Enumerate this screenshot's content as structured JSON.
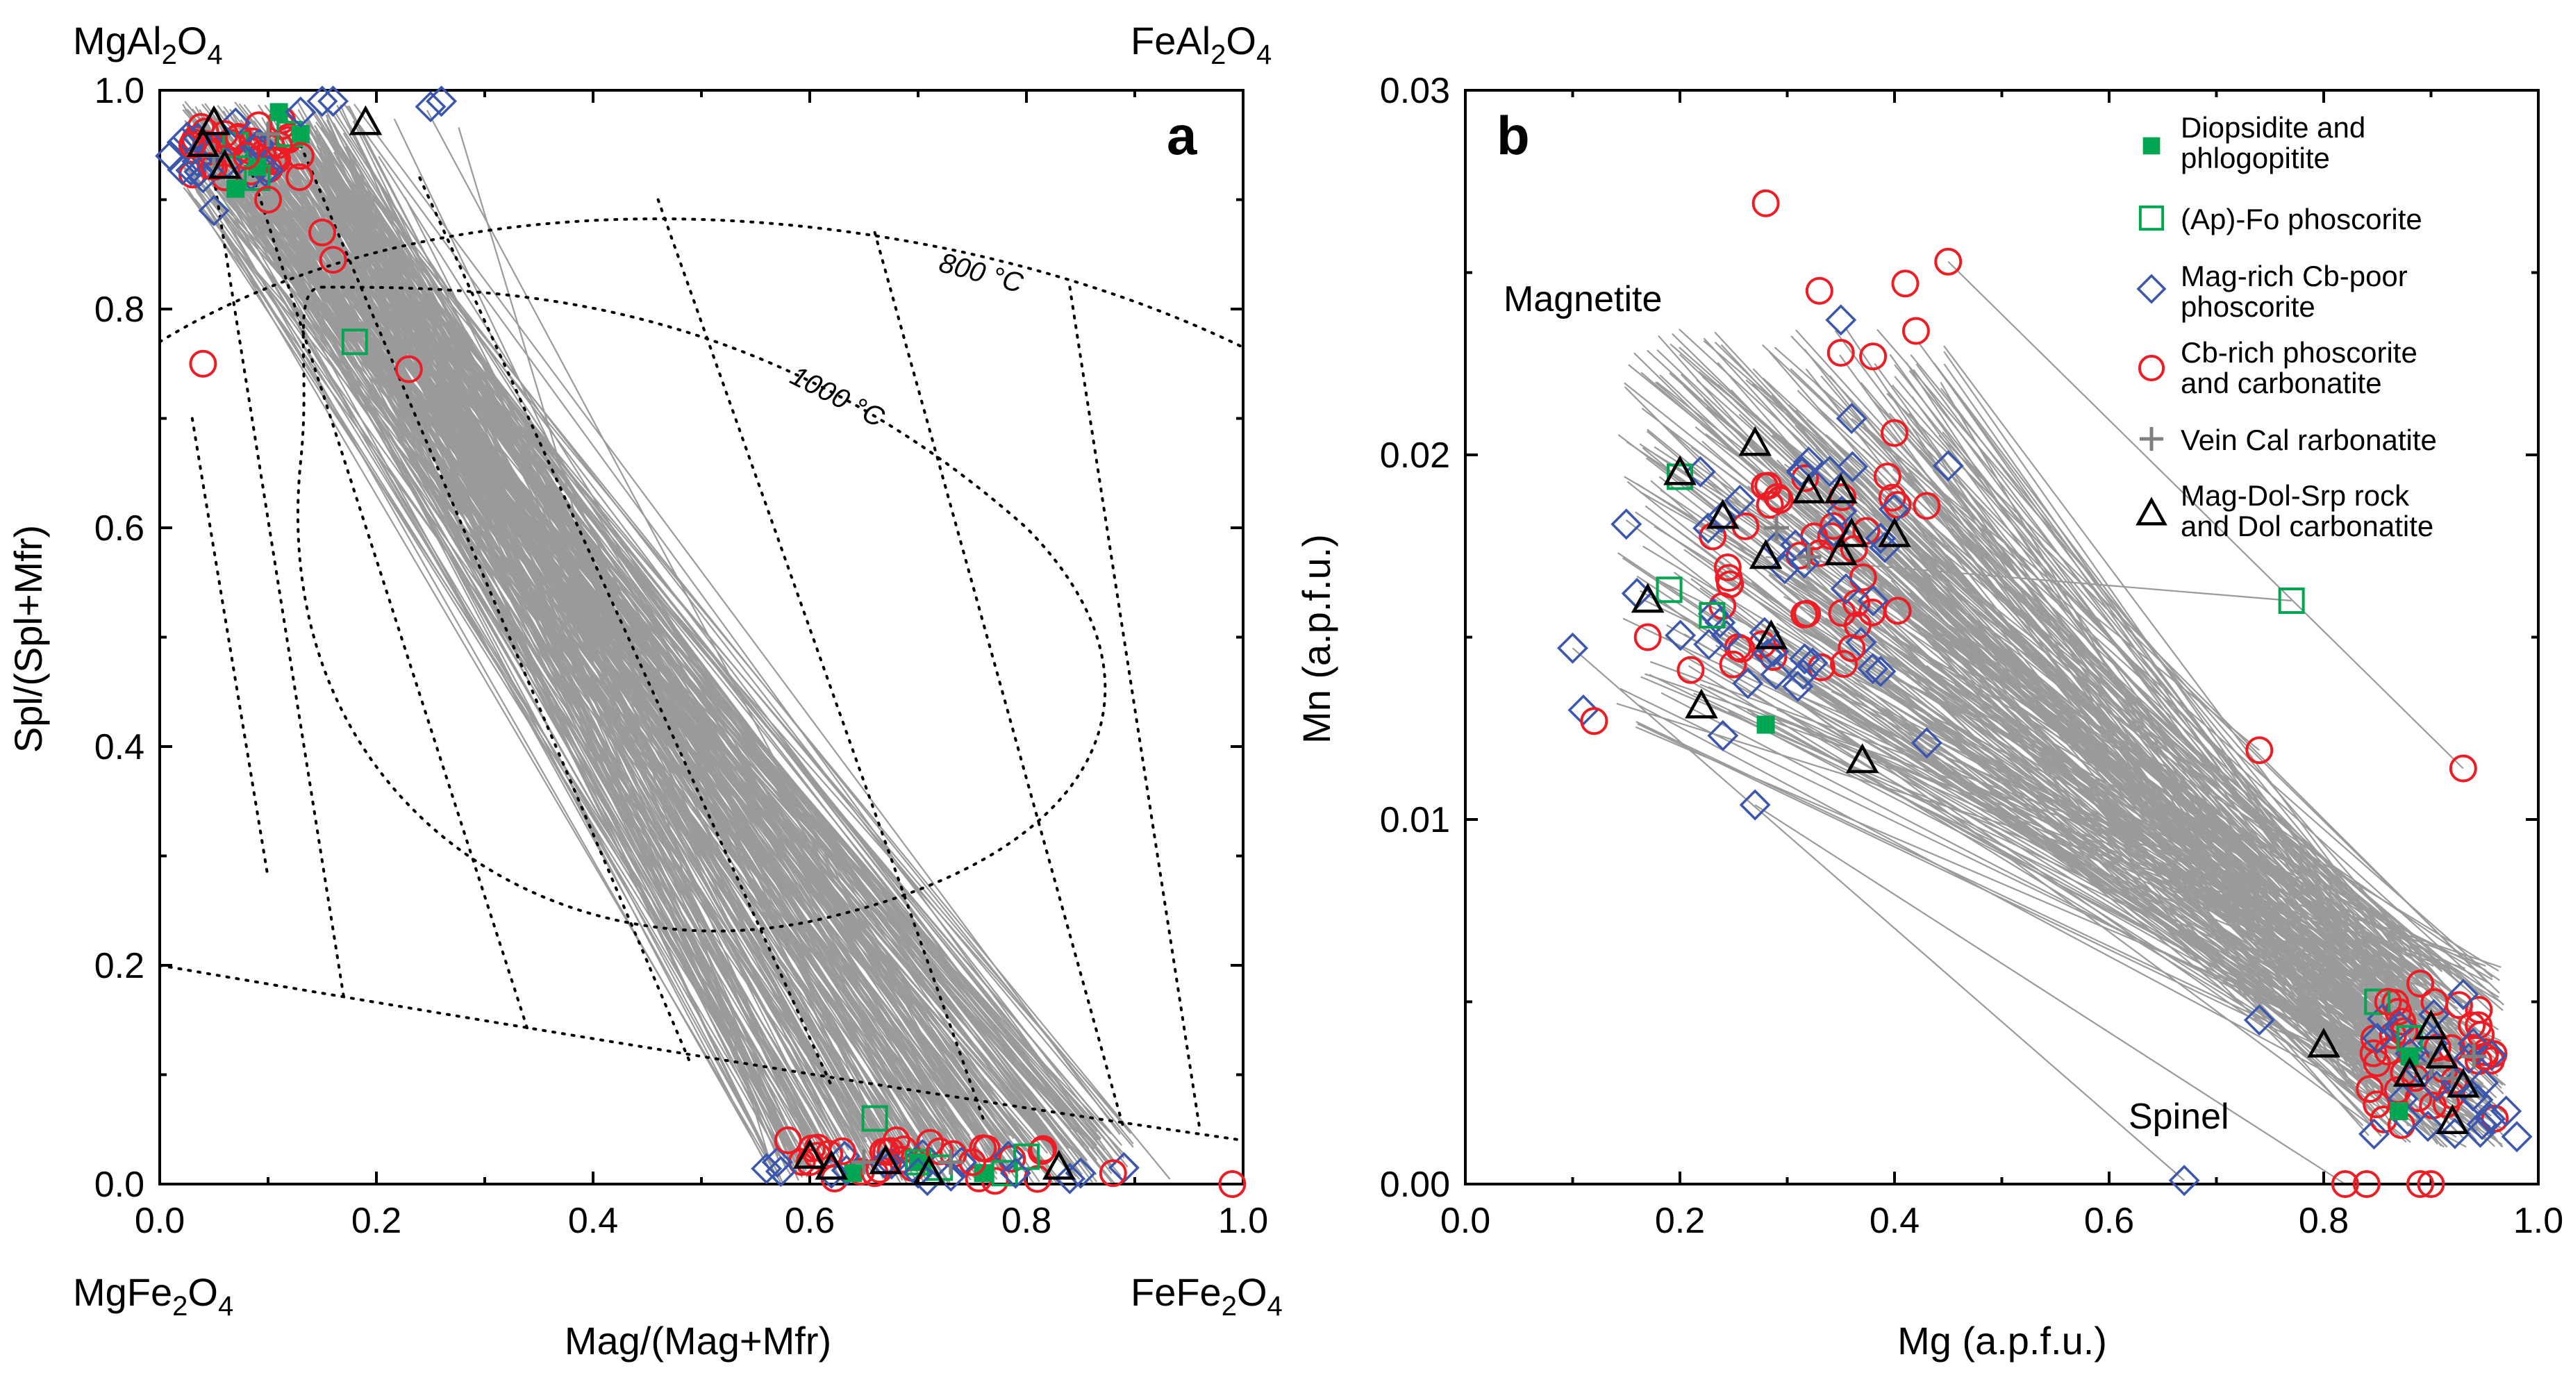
{
  "colors": {
    "diopsidite": "#00a651",
    "ap_fo": "#00a651",
    "mag_rich": "#3a57ad",
    "cb_rich": "#ee1c24",
    "vein_cal": "#808080",
    "mag_dol": "#000000",
    "tie_line": "#9a9a9a"
  },
  "legend": {
    "diopsidite": [
      "Diopsidite and",
      "phlogopitite"
    ],
    "ap_fo": [
      "(Ap)-Fo phoscorite"
    ],
    "mag_rich": [
      "Mag-rich Cb-poor",
      "phoscorite"
    ],
    "cb_rich": [
      "Cb-rich phoscorite",
      "and carbonatite"
    ],
    "vein_cal": [
      "Vein Cal rarbonatite"
    ],
    "mag_dol": [
      "Mag-Dol-Srp rock",
      "and Dol carbonatite"
    ]
  },
  "chart_data": [
    {
      "type": "scatter",
      "panel": "a",
      "xlabel": "Mag/(Mag+Mfr)",
      "ylabel": "Spl/(Spl+Mfr)",
      "xlim": [
        0,
        1
      ],
      "ylim": [
        0,
        1
      ],
      "xticks": [
        "0.0",
        "0.2",
        "0.4",
        "0.6",
        "0.8",
        "1.0"
      ],
      "yticks": [
        "0.0",
        "0.2",
        "0.4",
        "0.6",
        "0.8",
        "1.0"
      ],
      "corners": {
        "top_left": {
          "base": "MgAl",
          "sub1": "2",
          "mid": "O",
          "sub2": "4"
        },
        "top_right": {
          "base": "FeAl",
          "sub1": "2",
          "mid": "O",
          "sub2": "4"
        },
        "bottom_left": {
          "base": "MgFe",
          "sub1": "2",
          "mid": "O",
          "sub2": "4"
        },
        "bottom_right": {
          "base": "FeFe",
          "sub1": "2",
          "mid": "O",
          "sub2": "4"
        }
      },
      "isotherms": [
        {
          "label": "800 °C",
          "x": 0.73,
          "y": 0.84
        },
        {
          "label": "1000 °C",
          "x": 0.63,
          "y": 0.73
        }
      ],
      "series": [
        {
          "name": "Diopsidite and phlogopitite",
          "key": "diopsidite",
          "marker": "filled-square",
          "points": [
            [
              0.11,
              0.98
            ],
            [
              0.13,
              0.96
            ],
            [
              0.09,
              0.93
            ],
            [
              0.07,
              0.91
            ],
            [
              0.7,
              0.02
            ],
            [
              0.64,
              0.01
            ],
            [
              0.76,
              0.01
            ]
          ]
        },
        {
          "name": "(Ap)-Fo phoscorite",
          "key": "ap_fo",
          "marker": "open-square",
          "points": [
            [
              0.07,
              0.95
            ],
            [
              0.09,
              0.92
            ],
            [
              0.12,
              0.96
            ],
            [
              0.18,
              0.77
            ],
            [
              0.66,
              0.06
            ],
            [
              0.7,
              0.02
            ],
            [
              0.72,
              0.015
            ],
            [
              0.8,
              0.025
            ],
            [
              0.78,
              0.01
            ]
          ]
        },
        {
          "name": "Mag-rich Cb-poor phoscorite",
          "key": "mag_rich",
          "marker": "open-diamond",
          "points": [
            [
              0.01,
              0.94
            ],
            [
              0.04,
              0.92
            ],
            [
              0.05,
              0.89
            ],
            [
              0.07,
              0.97
            ],
            [
              0.09,
              0.95
            ],
            [
              0.13,
              0.98
            ],
            [
              0.15,
              0.99
            ],
            [
              0.16,
              0.99
            ],
            [
              0.25,
              0.985
            ],
            [
              0.26,
              0.99
            ],
            [
              0.57,
              0.02
            ],
            [
              0.62,
              0.01
            ],
            [
              0.7,
              0.01
            ],
            [
              0.74,
              0.02
            ],
            [
              0.79,
              0.01
            ],
            [
              0.84,
              0.005
            ],
            [
              0.85,
              0.01
            ],
            [
              0.89,
              0.015
            ]
          ]
        },
        {
          "name": "Cb-rich phoscorite and carbonatite",
          "key": "cb_rich",
          "marker": "open-circle",
          "points": [
            [
              0.03,
              0.95
            ],
            [
              0.05,
              0.93
            ],
            [
              0.06,
              0.96
            ],
            [
              0.08,
              0.94
            ],
            [
              0.1,
              0.9
            ],
            [
              0.11,
              0.95
            ],
            [
              0.13,
              0.94
            ],
            [
              0.15,
              0.87
            ],
            [
              0.16,
              0.845
            ],
            [
              0.04,
              0.75
            ],
            [
              0.23,
              0.745
            ],
            [
              0.58,
              0.04
            ],
            [
              0.6,
              0.02
            ],
            [
              0.63,
              0.03
            ],
            [
              0.66,
              0.01
            ],
            [
              0.68,
              0.04
            ],
            [
              0.72,
              0.03
            ],
            [
              0.75,
              0.02
            ],
            [
              0.88,
              0.01
            ],
            [
              0.99,
              0.0
            ]
          ]
        },
        {
          "name": "Vein Cal rarbonatite",
          "key": "vein_cal",
          "marker": "plus",
          "points": [
            [
              0.05,
              0.94
            ],
            [
              0.1,
              0.96
            ],
            [
              0.65,
              0.02
            ],
            [
              0.73,
              0.02
            ]
          ]
        },
        {
          "name": "Mag-Dol-Srp rock and Dol carbonatite",
          "key": "mag_dol",
          "marker": "open-triangle",
          "points": [
            [
              0.04,
              0.95
            ],
            [
              0.05,
              0.97
            ],
            [
              0.06,
              0.93
            ],
            [
              0.19,
              0.97
            ],
            [
              0.6,
              0.025
            ],
            [
              0.62,
              0.015
            ],
            [
              0.67,
              0.02
            ],
            [
              0.71,
              0.01
            ],
            [
              0.83,
              0.015
            ]
          ]
        }
      ]
    },
    {
      "type": "scatter",
      "panel": "b",
      "xlabel": "Mg (a.p.f.u.)",
      "ylabel": "Mn (a.p.f.u.)",
      "xlim": [
        0,
        1
      ],
      "ylim": [
        0,
        0.03
      ],
      "xticks": [
        "0.0",
        "0.2",
        "0.4",
        "0.6",
        "0.8",
        "1.0"
      ],
      "yticks": [
        "0.00",
        "0.01",
        "0.02",
        "0.03"
      ],
      "annotations": [
        "Magnetite",
        "Spinel"
      ],
      "series": [
        {
          "name": "Diopsidite and phlogopitite",
          "key": "diopsidite",
          "marker": "filled-square",
          "points": [
            [
              0.28,
              0.0126
            ],
            [
              0.87,
              0.002
            ],
            [
              0.88,
              0.0035
            ]
          ]
        },
        {
          "name": "(Ap)-Fo phoscorite",
          "key": "ap_fo",
          "marker": "open-square",
          "points": [
            [
              0.2,
              0.0194
            ],
            [
              0.19,
              0.0163
            ],
            [
              0.23,
              0.0156
            ],
            [
              0.77,
              0.016
            ],
            [
              0.85,
              0.005
            ],
            [
              0.88,
              0.004
            ]
          ]
        },
        {
          "name": "Mag-rich Cb-poor phoscorite",
          "key": "mag_rich",
          "marker": "open-diamond",
          "points": [
            [
              0.1,
              0.0147
            ],
            [
              0.11,
              0.013
            ],
            [
              0.15,
              0.0181
            ],
            [
              0.16,
              0.0162
            ],
            [
              0.24,
              0.0123
            ],
            [
              0.27,
              0.0104
            ],
            [
              0.29,
              0.0175
            ],
            [
              0.32,
              0.0198
            ],
            [
              0.35,
              0.0237
            ],
            [
              0.36,
              0.021
            ],
            [
              0.38,
              0.016
            ],
            [
              0.43,
              0.0121
            ],
            [
              0.45,
              0.0197
            ],
            [
              0.67,
              0.0001
            ],
            [
              0.74,
              0.0045
            ],
            [
              0.85,
              0.004
            ],
            [
              0.93,
              0.0052
            ],
            [
              0.97,
              0.002
            ],
            [
              0.98,
              0.0013
            ]
          ]
        },
        {
          "name": "Cb-rich phoscorite and carbonatite",
          "key": "cb_rich",
          "marker": "open-circle",
          "points": [
            [
              0.12,
              0.0127
            ],
            [
              0.17,
              0.015
            ],
            [
              0.21,
              0.0141
            ],
            [
              0.28,
              0.0269
            ],
            [
              0.33,
              0.0245
            ],
            [
              0.35,
              0.0228
            ],
            [
              0.38,
              0.0227
            ],
            [
              0.4,
              0.0206
            ],
            [
              0.41,
              0.0247
            ],
            [
              0.42,
              0.0234
            ],
            [
              0.45,
              0.0253
            ],
            [
              0.43,
              0.0186
            ],
            [
              0.36,
              0.0147
            ],
            [
              0.74,
              0.0119
            ],
            [
              0.93,
              0.0114
            ],
            [
              0.82,
              0.0
            ],
            [
              0.84,
              0.0
            ],
            [
              0.89,
              0.0
            ],
            [
              0.9,
              0.0
            ],
            [
              0.86,
              0.005
            ],
            [
              0.89,
              0.0055
            ],
            [
              0.95,
              0.0035
            ]
          ]
        },
        {
          "name": "Vein Cal rarbonatite",
          "key": "vein_cal",
          "marker": "plus",
          "points": [
            [
              0.29,
              0.018
            ],
            [
              0.32,
              0.0172
            ],
            [
              0.9,
              0.0033
            ],
            [
              0.92,
              0.0029
            ],
            [
              0.94,
              0.0035
            ]
          ]
        },
        {
          "name": "Mag-Dol-Srp rock and Dol carbonatite",
          "key": "mag_dol",
          "marker": "open-triangle",
          "points": [
            [
              0.17,
              0.016
            ],
            [
              0.2,
              0.0195
            ],
            [
              0.22,
              0.0131
            ],
            [
              0.24,
              0.0183
            ],
            [
              0.27,
              0.0203
            ],
            [
              0.28,
              0.0172
            ],
            [
              0.285,
              0.015
            ],
            [
              0.32,
              0.019
            ],
            [
              0.35,
              0.019
            ],
            [
              0.36,
              0.0178
            ],
            [
              0.35,
              0.0173
            ],
            [
              0.37,
              0.0116
            ],
            [
              0.4,
              0.0178
            ],
            [
              0.8,
              0.0038
            ],
            [
              0.88,
              0.003
            ],
            [
              0.9,
              0.0043
            ],
            [
              0.91,
              0.0035
            ],
            [
              0.92,
              0.0017
            ],
            [
              0.93,
              0.0027
            ]
          ]
        }
      ]
    }
  ]
}
